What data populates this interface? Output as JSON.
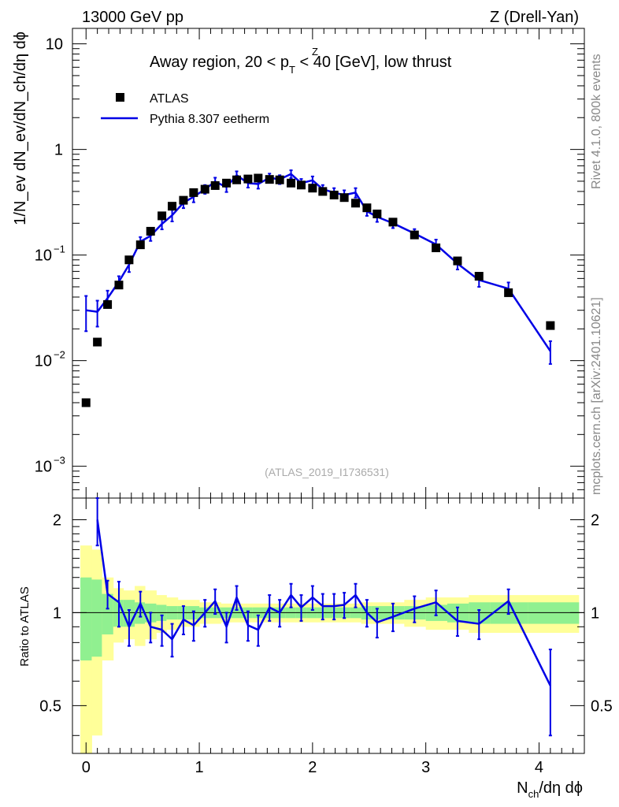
{
  "header": {
    "left": "13000 GeV pp",
    "right": "Z (Drell-Yan)",
    "side_rivet": "Rivet 4.1.0,  800k events",
    "side_mcplots": "mcplots.cern.ch [arXiv:2401.10621]",
    "analysis_id": "(ATLAS_2019_I1736531)"
  },
  "title": {
    "prefix": "Away region, 20 < p",
    "sup": "Z",
    "sub": "T",
    "suffix": " < 40 [GeV], low thrust"
  },
  "legend": {
    "data_label": "ATLAS",
    "mc_label": "Pythia 8.307 eetherm"
  },
  "colors": {
    "mc_line": "#0000e6",
    "band_inner": "#90f090",
    "band_outer": "#ffff99",
    "data_marker": "#000000"
  },
  "axes": {
    "xlabel": "N_ch/dη dϕ",
    "xlabel_main": "N",
    "xlabel_sub": "ch",
    "xlabel_rest": "/dη dϕ",
    "ylabel_main": "1/N_ev dN_ev/dN_ch/dη dϕ",
    "ylabel_ratio": "Ratio to ATLAS",
    "x_range": [
      -0.12,
      4.4
    ],
    "y_main_range": [
      0.0005,
      14
    ],
    "y_ratio_range": [
      0.35,
      2.35
    ],
    "x_ticks": [
      "0",
      "1",
      "2",
      "3",
      "4"
    ],
    "y_main_ticks": [
      {
        "base": "10",
        "exp": "",
        "value": 10
      },
      {
        "base": "1",
        "exp": "",
        "value": 1
      },
      {
        "base": "10",
        "exp": "−1",
        "value": 0.1
      },
      {
        "base": "10",
        "exp": "−2",
        "value": 0.01
      },
      {
        "base": "10",
        "exp": "−3",
        "value": 0.001
      }
    ],
    "y_ratio_ticks": [
      "2",
      "1",
      "0.5"
    ]
  },
  "chart_data": {
    "type": "scatter",
    "title": "Away region, 20 < pT^Z < 40 [GeV], low thrust",
    "xlabel": "N_ch/dη dϕ",
    "ylabel": "1/N_ev dN_ev/dN_ch/dη dϕ",
    "yscale": "log",
    "data": {
      "name": "ATLAS",
      "x": [
        0.0,
        0.1,
        0.19,
        0.29,
        0.38,
        0.48,
        0.57,
        0.67,
        0.76,
        0.86,
        0.95,
        1.05,
        1.14,
        1.24,
        1.33,
        1.43,
        1.52,
        1.62,
        1.71,
        1.81,
        1.9,
        2.0,
        2.09,
        2.19,
        2.28,
        2.38,
        2.48,
        2.57,
        2.71,
        2.9,
        3.09,
        3.28,
        3.47,
        3.73,
        4.1
      ],
      "y": [
        0.004,
        0.015,
        0.034,
        0.052,
        0.09,
        0.125,
        0.168,
        0.235,
        0.29,
        0.33,
        0.39,
        0.42,
        0.455,
        0.48,
        0.515,
        0.525,
        0.535,
        0.52,
        0.515,
        0.48,
        0.46,
        0.43,
        0.4,
        0.37,
        0.35,
        0.31,
        0.28,
        0.245,
        0.205,
        0.155,
        0.117,
        0.088,
        0.063,
        0.044,
        0.0215
      ]
    },
    "mc": {
      "name": "Pythia 8.307 eetherm",
      "x": [
        0.0,
        0.1,
        0.19,
        0.29,
        0.38,
        0.48,
        0.57,
        0.67,
        0.76,
        0.86,
        0.95,
        1.05,
        1.14,
        1.24,
        1.33,
        1.43,
        1.52,
        1.62,
        1.71,
        1.81,
        1.9,
        2.0,
        2.09,
        2.19,
        2.28,
        2.38,
        2.48,
        2.57,
        2.71,
        2.9,
        3.09,
        3.28,
        3.47,
        3.73,
        4.1
      ],
      "y": [
        0.03,
        0.029,
        0.039,
        0.056,
        0.081,
        0.134,
        0.152,
        0.197,
        0.238,
        0.313,
        0.356,
        0.42,
        0.495,
        0.44,
        0.57,
        0.48,
        0.47,
        0.54,
        0.52,
        0.585,
        0.48,
        0.51,
        0.42,
        0.39,
        0.37,
        0.39,
        0.26,
        0.23,
        0.2,
        0.16,
        0.126,
        0.083,
        0.058,
        0.048,
        0.0123
      ],
      "yerr": [
        0.011,
        0.008,
        0.007,
        0.007,
        0.012,
        0.014,
        0.016,
        0.022,
        0.03,
        0.035,
        0.04,
        0.04,
        0.045,
        0.045,
        0.05,
        0.045,
        0.045,
        0.05,
        0.05,
        0.05,
        0.045,
        0.045,
        0.04,
        0.04,
        0.04,
        0.04,
        0.025,
        0.024,
        0.02,
        0.016,
        0.014,
        0.01,
        0.008,
        0.007,
        0.003
      ]
    },
    "ratio": {
      "x": [
        0.1,
        0.19,
        0.29,
        0.38,
        0.48,
        0.57,
        0.67,
        0.76,
        0.86,
        0.95,
        1.05,
        1.14,
        1.24,
        1.33,
        1.43,
        1.52,
        1.62,
        1.71,
        1.81,
        1.9,
        2.0,
        2.09,
        2.19,
        2.28,
        2.38,
        2.48,
        2.57,
        2.71,
        2.9,
        3.09,
        3.28,
        3.47,
        3.73,
        4.1
      ],
      "y": [
        2.0,
        1.15,
        1.08,
        0.9,
        1.07,
        0.9,
        0.88,
        0.82,
        0.95,
        0.91,
        1.0,
        1.09,
        0.9,
        1.12,
        0.91,
        0.88,
        1.04,
        1.0,
        1.14,
        1.04,
        1.12,
        1.05,
        1.05,
        1.06,
        1.14,
        1.0,
        0.93,
        0.97,
        1.03,
        1.08,
        0.94,
        0.92,
        1.09,
        0.58
      ],
      "yerr": [
        0.35,
        0.12,
        0.18,
        0.12,
        0.1,
        0.1,
        0.1,
        0.1,
        0.1,
        0.1,
        0.1,
        0.1,
        0.1,
        0.1,
        0.1,
        0.1,
        0.1,
        0.1,
        0.1,
        0.1,
        0.1,
        0.1,
        0.1,
        0.1,
        0.1,
        0.1,
        0.1,
        0.1,
        0.1,
        0.1,
        0.1,
        0.1,
        0.1,
        0.18
      ]
    },
    "bands": {
      "bin_edges": [
        -0.05,
        0.05,
        0.14,
        0.24,
        0.33,
        0.43,
        0.52,
        0.62,
        0.71,
        0.81,
        0.9,
        1.0,
        1.09,
        1.19,
        1.28,
        1.38,
        1.47,
        1.57,
        1.66,
        1.76,
        1.85,
        1.95,
        2.04,
        2.14,
        2.23,
        2.33,
        2.43,
        2.52,
        2.62,
        2.81,
        3.0,
        3.19,
        3.38,
        3.57,
        3.9,
        4.35
      ],
      "inner": [
        0.3,
        0.28,
        0.15,
        0.1,
        0.1,
        0.08,
        0.07,
        0.06,
        0.05,
        0.05,
        0.05,
        0.04,
        0.04,
        0.04,
        0.04,
        0.04,
        0.04,
        0.04,
        0.04,
        0.04,
        0.04,
        0.04,
        0.04,
        0.04,
        0.04,
        0.04,
        0.05,
        0.05,
        0.05,
        0.05,
        0.06,
        0.07,
        0.08,
        0.08,
        0.08
      ],
      "outer": [
        0.65,
        0.6,
        0.3,
        0.2,
        0.18,
        0.22,
        0.18,
        0.14,
        0.12,
        0.1,
        0.1,
        0.08,
        0.08,
        0.07,
        0.07,
        0.07,
        0.07,
        0.07,
        0.07,
        0.07,
        0.07,
        0.07,
        0.07,
        0.07,
        0.07,
        0.07,
        0.08,
        0.08,
        0.08,
        0.1,
        0.12,
        0.12,
        0.14,
        0.14,
        0.14
      ]
    }
  }
}
